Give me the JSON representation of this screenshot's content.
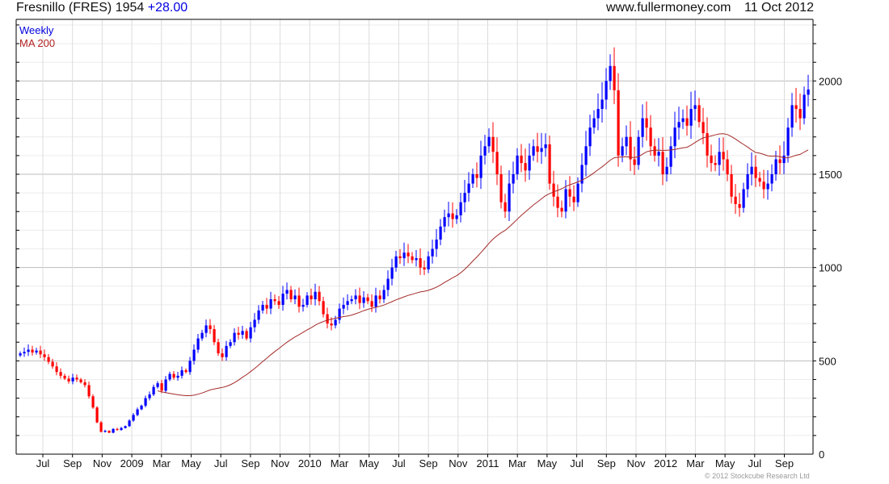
{
  "header": {
    "name": "Fresnillo (FRES)",
    "price": "1954",
    "change": "+28.00",
    "site": "www.fullermoney.com",
    "date": "11 Oct 2012"
  },
  "copyright": "© 2012 Stockcube Research Ltd",
  "colors": {
    "up": "#0000ff",
    "down": "#ff0000",
    "ma": "#a52a2a",
    "legend_weekly": "#0000e0",
    "legend_ma": "#b22222"
  },
  "chart_data": {
    "type": "candlestick",
    "title": "Fresnillo (FRES) 1954 +28.00",
    "legend": [
      {
        "label": "Weekly",
        "placement": "top-left"
      },
      {
        "label": "MA 200",
        "placement": "top-left"
      }
    ],
    "x_tick_labels": [
      "Jul",
      "Sep",
      "Nov",
      "2009",
      "Mar",
      "May",
      "Jul",
      "Sep",
      "Nov",
      "2010",
      "Mar",
      "May",
      "Jul",
      "Sep",
      "Nov",
      "2011",
      "Mar",
      "May",
      "Jul",
      "Sep",
      "Nov",
      "2012",
      "Mar",
      "May",
      "Jul",
      "Sep"
    ],
    "y_tick_labels": [
      "0",
      "500",
      "1000",
      "1500",
      "2000"
    ],
    "y_ticks": [
      0,
      500,
      1000,
      1500,
      2000
    ],
    "ylim": [
      0,
      2330
    ],
    "grid": true,
    "weekly_close": [
      540,
      548,
      560,
      545,
      555,
      535,
      520,
      495,
      470,
      440,
      420,
      405,
      390,
      410,
      400,
      385,
      370,
      310,
      250,
      170,
      120,
      125,
      115,
      135,
      130,
      140,
      150,
      180,
      210,
      240,
      260,
      300,
      320,
      360,
      380,
      340,
      400,
      430,
      410,
      420,
      450,
      440,
      500,
      560,
      620,
      650,
      690,
      670,
      600,
      540,
      520,
      580,
      600,
      650,
      640,
      660,
      620,
      680,
      720,
      770,
      800,
      780,
      830,
      820,
      800,
      860,
      880,
      830,
      850,
      790,
      800,
      850,
      830,
      870,
      820,
      750,
      700,
      690,
      720,
      780,
      800,
      820,
      830,
      850,
      810,
      840,
      820,
      790,
      850,
      830,
      880,
      940,
      1000,
      1060,
      1050,
      1080,
      1060,
      1040,
      1050,
      1000,
      990,
      1060,
      1100,
      1150,
      1220,
      1270,
      1290,
      1260,
      1280,
      1350,
      1400,
      1450,
      1500,
      1480,
      1600,
      1650,
      1700,
      1620,
      1500,
      1350,
      1300,
      1450,
      1500,
      1600,
      1560,
      1520,
      1600,
      1650,
      1620,
      1640,
      1660,
      1450,
      1380,
      1320,
      1300,
      1420,
      1380,
      1350,
      1450,
      1550,
      1650,
      1750,
      1800,
      1850,
      1900,
      2000,
      2080,
      1950,
      1600,
      1650,
      1700,
      1580,
      1550,
      1700,
      1800,
      1750,
      1650,
      1600,
      1620,
      1500,
      1540,
      1650,
      1750,
      1780,
      1800,
      1760,
      1850,
      1870,
      1780,
      1720,
      1600,
      1560,
      1550,
      1620,
      1580,
      1500,
      1380,
      1340,
      1320,
      1420,
      1500,
      1540,
      1480,
      1460,
      1420,
      1450,
      1500,
      1580,
      1560,
      1600,
      1750,
      1870,
      1850,
      1800,
      1926,
      1954
    ]
  }
}
